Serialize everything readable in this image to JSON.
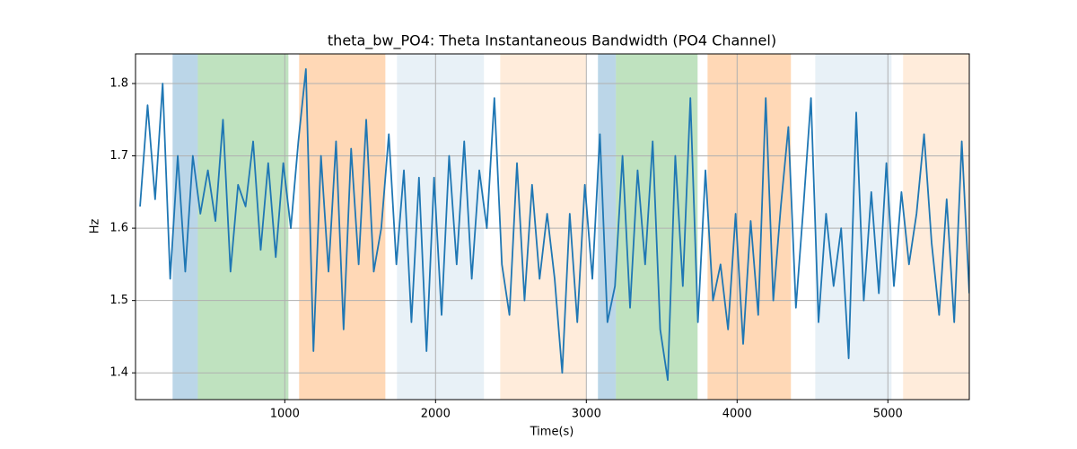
{
  "chart_data": {
    "type": "line",
    "title": "theta_bw_PO4: Theta Instantaneous Bandwidth (PO4 Channel)",
    "x_label": "Time(s)",
    "y_label": "Hz",
    "xlim": [
      10,
      5540
    ],
    "ylim": [
      1.363,
      1.841
    ],
    "xticks": [
      1000,
      2000,
      3000,
      4000,
      5000
    ],
    "yticks": [
      1.4,
      1.5,
      1.6,
      1.7,
      1.8
    ],
    "grid": true,
    "spans": [
      {
        "start": 256,
        "end": 423,
        "color": "#1f77b4",
        "opacity": 0.3
      },
      {
        "start": 423,
        "end": 1024,
        "color": "#2ca02c",
        "opacity": 0.3
      },
      {
        "start": 1095,
        "end": 1667,
        "color": "#ff7f0e",
        "opacity": 0.3
      },
      {
        "start": 1744,
        "end": 2321,
        "color": "#1f77b4",
        "opacity": 0.1
      },
      {
        "start": 2429,
        "end": 3000,
        "color": "#ff7f0e",
        "opacity": 0.15
      },
      {
        "start": 3077,
        "end": 3196,
        "color": "#1f77b4",
        "opacity": 0.3
      },
      {
        "start": 3196,
        "end": 3738,
        "color": "#2ca02c",
        "opacity": 0.3
      },
      {
        "start": 3804,
        "end": 4357,
        "color": "#ff7f0e",
        "opacity": 0.3
      },
      {
        "start": 4518,
        "end": 5024,
        "color": "#1f77b4",
        "opacity": 0.1
      },
      {
        "start": 5101,
        "end": 5540,
        "color": "#ff7f0e",
        "opacity": 0.15
      }
    ],
    "x": [
      40,
      90,
      140,
      190,
      240,
      290,
      340,
      390,
      440,
      490,
      540,
      590,
      640,
      690,
      740,
      790,
      840,
      890,
      940,
      990,
      1040,
      1090,
      1140,
      1190,
      1240,
      1290,
      1340,
      1390,
      1440,
      1490,
      1540,
      1590,
      1640,
      1690,
      1740,
      1790,
      1840,
      1890,
      1940,
      1990,
      2040,
      2090,
      2140,
      2190,
      2240,
      2290,
      2340,
      2390,
      2440,
      2490,
      2540,
      2590,
      2640,
      2690,
      2740,
      2790,
      2840,
      2890,
      2940,
      2990,
      3040,
      3090,
      3140,
      3190,
      3240,
      3290,
      3340,
      3390,
      3440,
      3490,
      3540,
      3590,
      3640,
      3690,
      3740,
      3790,
      3840,
      3890,
      3940,
      3990,
      4040,
      4090,
      4140,
      4190,
      4240,
      4290,
      4340,
      4390,
      4440,
      4490,
      4540,
      4590,
      4640,
      4690,
      4740,
      4790,
      4840,
      4890,
      4940,
      4990,
      5040,
      5090,
      5140,
      5190,
      5240,
      5290,
      5340,
      5390,
      5440,
      5490,
      5540
    ],
    "series": [
      {
        "name": "theta_bw_PO4",
        "color": "#1f77b4",
        "values": [
          1.63,
          1.77,
          1.64,
          1.8,
          1.53,
          1.7,
          1.54,
          1.7,
          1.62,
          1.68,
          1.61,
          1.75,
          1.54,
          1.66,
          1.63,
          1.72,
          1.57,
          1.69,
          1.56,
          1.69,
          1.6,
          1.72,
          1.82,
          1.43,
          1.7,
          1.54,
          1.72,
          1.46,
          1.71,
          1.55,
          1.75,
          1.54,
          1.6,
          1.73,
          1.55,
          1.68,
          1.47,
          1.67,
          1.43,
          1.67,
          1.48,
          1.7,
          1.55,
          1.72,
          1.53,
          1.68,
          1.6,
          1.78,
          1.55,
          1.48,
          1.69,
          1.5,
          1.66,
          1.53,
          1.62,
          1.53,
          1.4,
          1.62,
          1.47,
          1.66,
          1.53,
          1.73,
          1.47,
          1.52,
          1.7,
          1.49,
          1.68,
          1.55,
          1.72,
          1.46,
          1.39,
          1.7,
          1.52,
          1.78,
          1.47,
          1.68,
          1.5,
          1.55,
          1.46,
          1.62,
          1.44,
          1.61,
          1.48,
          1.78,
          1.5,
          1.63,
          1.74,
          1.49,
          1.63,
          1.78,
          1.47,
          1.62,
          1.52,
          1.6,
          1.42,
          1.76,
          1.5,
          1.65,
          1.51,
          1.69,
          1.52,
          1.65,
          1.55,
          1.62,
          1.73,
          1.58,
          1.48,
          1.64,
          1.47,
          1.72,
          1.51
        ]
      }
    ]
  }
}
